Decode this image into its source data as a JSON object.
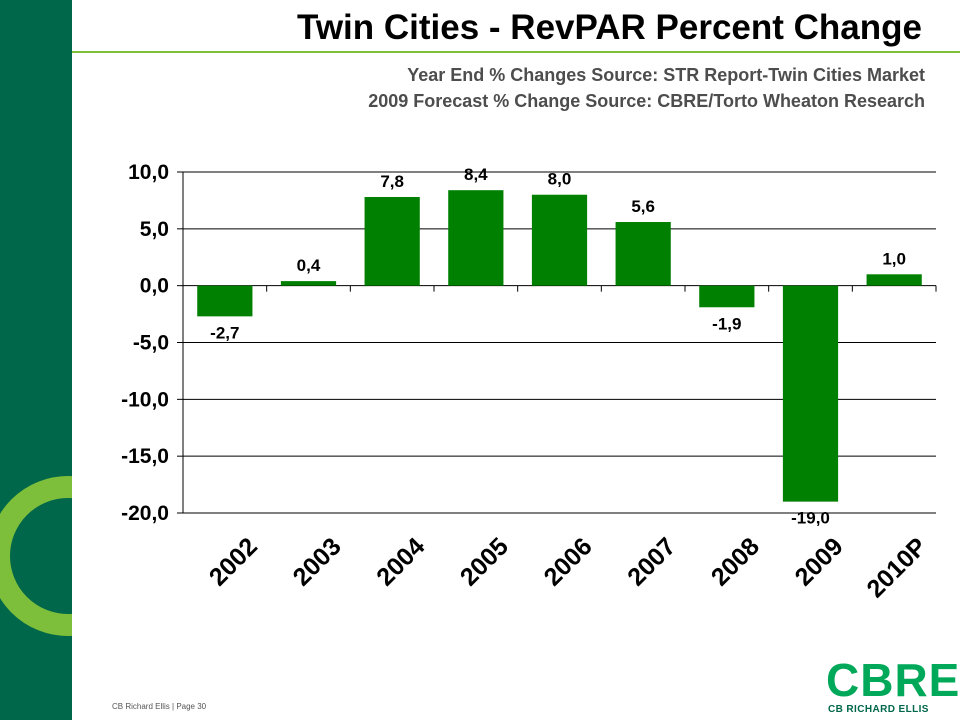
{
  "slide": {
    "title": "Twin Cities - RevPAR Percent Change",
    "subtitle_line1": "Year End % Changes Source: STR Report-Twin Cities Market",
    "subtitle_line2": "2009 Forecast % Change Source: CBRE/Torto Wheaton Research",
    "footer": "CB Richard Ellis | Page 30"
  },
  "brand": {
    "wordmark": "CBRE",
    "company": "CB RICHARD ELLIS",
    "dark_green": "#00674a",
    "light_green": "#7dbf3a",
    "bar_color": "#008000"
  },
  "chart_data": {
    "type": "bar",
    "categories": [
      "2002",
      "2003",
      "2004",
      "2005",
      "2006",
      "2007",
      "2008",
      "2009",
      "2010P"
    ],
    "values": [
      -2.7,
      0.4,
      7.8,
      8.4,
      8.0,
      5.6,
      -1.9,
      -19.0,
      1.0
    ],
    "value_labels": [
      "-2,7",
      "0,4",
      "7,8",
      "8,4",
      "8,0",
      "5,6",
      "-1,9",
      "-19,0",
      "1,0"
    ],
    "ylim": [
      -20,
      10
    ],
    "yticks": [
      10,
      5,
      0,
      -5,
      -10,
      -15,
      -20
    ],
    "ytick_labels": [
      "10,0",
      "5,0",
      "0,0",
      "-5,0",
      "-10,0",
      "-15,0",
      "-20,0"
    ],
    "grid": true,
    "xlabel": "",
    "ylabel": ""
  }
}
